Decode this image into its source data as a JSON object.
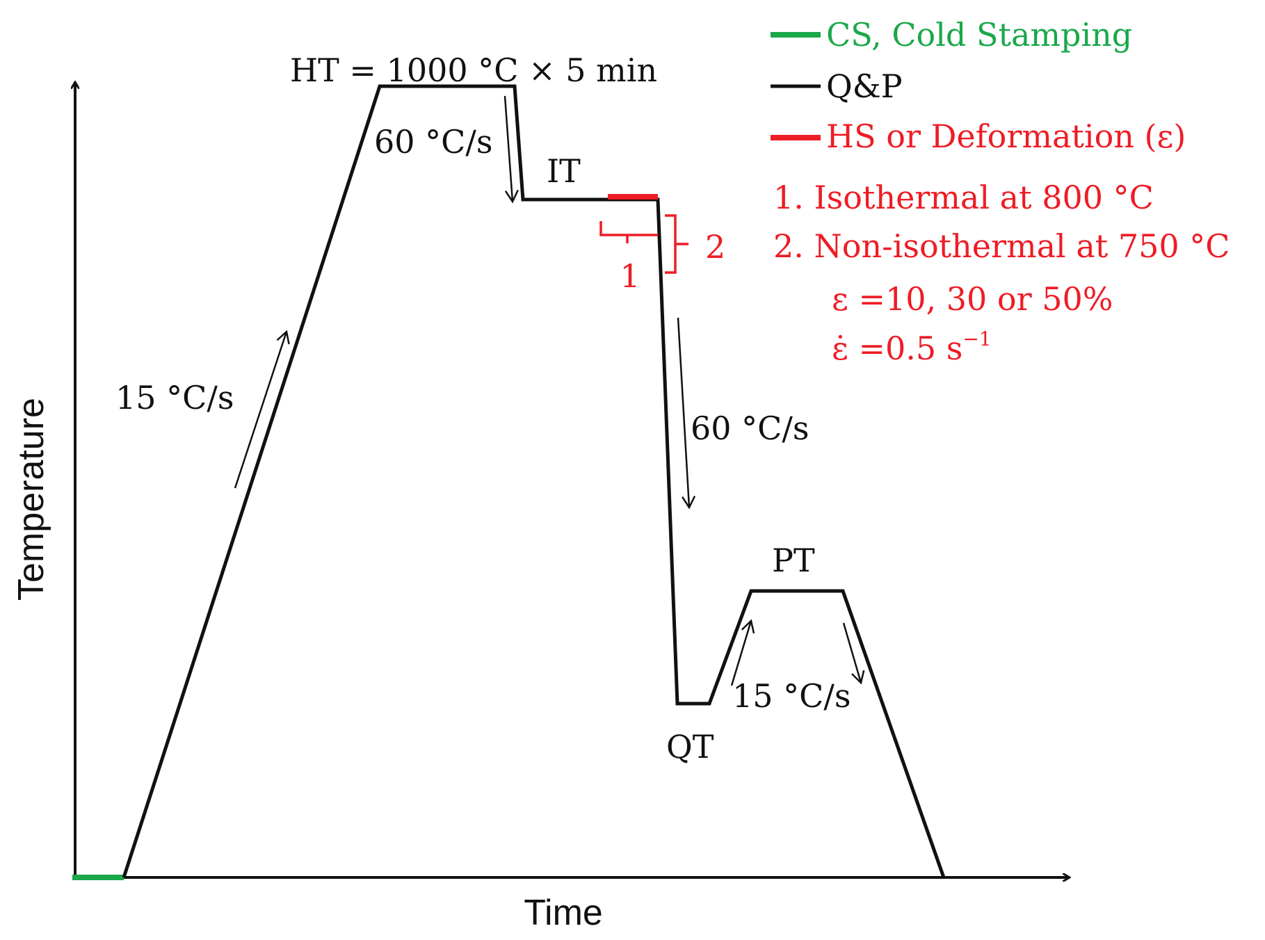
{
  "axes": {
    "x_label": "Time",
    "y_label": "Temperature"
  },
  "labels": {
    "ht": "HT = 1000 °C × 5 min",
    "rate_heating_main": "15 °C/s",
    "rate_cool_1": "60 °C/s",
    "it": "IT",
    "rate_cool_2": "60 °C/s",
    "qt": "QT",
    "pt": "PT",
    "rate_pt": "15 °C/s",
    "bracket_1": "1",
    "bracket_2": "2"
  },
  "legend": {
    "cs": "CS, Cold Stamping",
    "qp": "Q&P",
    "hs": "HS or Deformation (ε)",
    "item1": "1.  Isothermal at 800 °C",
    "item2": "2.  Non-isothermal at 750 °C",
    "strain": "ε =10, 30 or 50%",
    "strain_rate_prefix": "ε̇ =0.5 s",
    "strain_rate_exp": "−1"
  },
  "colors": {
    "black": "#111111",
    "red": "#ee1c25",
    "green": "#1aa84a"
  }
}
